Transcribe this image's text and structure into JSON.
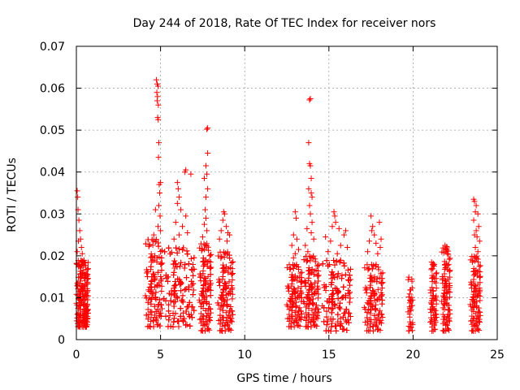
{
  "chart_data": {
    "type": "scatter",
    "title": "Day 244 of 2018, Rate Of TEC Index for receiver nors",
    "xlabel": "GPS time / hours",
    "ylabel": "ROTI / TECUs",
    "xlim": [
      0,
      25
    ],
    "ylim": [
      0,
      0.07
    ],
    "grid": true,
    "marker": "+",
    "marker_color": "#ff0000",
    "x_ticks": [
      0,
      5,
      10,
      15,
      20,
      25
    ],
    "x_tick_labels": [
      "0",
      "5",
      "10",
      "15",
      "20",
      "25"
    ],
    "y_ticks": [
      0,
      0.01,
      0.02,
      0.03,
      0.04,
      0.05,
      0.06,
      0.07
    ],
    "y_tick_labels": [
      "0",
      "0.01",
      "0.02",
      "0.03",
      "0.04",
      "0.05",
      "0.06",
      "0.07"
    ],
    "clusters": [
      {
        "x": [
          0.0,
          0.7
        ],
        "low": 0.003,
        "high": 0.019,
        "count": 260,
        "outliers": [
          [
            0.05,
            0.0355
          ],
          [
            0.08,
            0.034
          ],
          [
            0.1,
            0.031
          ],
          [
            0.15,
            0.0285
          ],
          [
            0.2,
            0.026
          ],
          [
            0.25,
            0.024
          ],
          [
            0.3,
            0.022
          ],
          [
            0.12,
            0.0235
          ],
          [
            0.35,
            0.0205
          ],
          [
            0.05,
            0.021
          ]
        ]
      },
      {
        "x": [
          4.1,
          5.1
        ],
        "low": 0.003,
        "high": 0.024,
        "count": 200,
        "outliers": [
          [
            4.75,
            0.062
          ],
          [
            4.8,
            0.061
          ],
          [
            4.85,
            0.0605
          ],
          [
            4.78,
            0.059
          ],
          [
            4.82,
            0.058
          ],
          [
            4.8,
            0.057
          ],
          [
            4.87,
            0.056
          ],
          [
            4.83,
            0.053
          ],
          [
            4.86,
            0.0525
          ],
          [
            4.9,
            0.047
          ],
          [
            4.88,
            0.0435
          ],
          [
            4.92,
            0.037
          ],
          [
            5.0,
            0.0375
          ],
          [
            4.95,
            0.035
          ],
          [
            4.9,
            0.032
          ],
          [
            4.7,
            0.031
          ],
          [
            4.97,
            0.0295
          ],
          [
            4.85,
            0.027
          ],
          [
            4.6,
            0.025
          ],
          [
            5.0,
            0.026
          ]
        ]
      },
      {
        "x": [
          5.2,
          7.0
        ],
        "low": 0.003,
        "high": 0.022,
        "count": 300,
        "outliers": [
          [
            6.5,
            0.0405
          ],
          [
            6.45,
            0.04
          ],
          [
            6.8,
            0.0395
          ],
          [
            6.0,
            0.0375
          ],
          [
            6.05,
            0.036
          ],
          [
            6.1,
            0.034
          ],
          [
            6.0,
            0.0325
          ],
          [
            6.2,
            0.031
          ],
          [
            6.5,
            0.0295
          ],
          [
            5.9,
            0.028
          ],
          [
            6.3,
            0.027
          ],
          [
            6.6,
            0.0255
          ],
          [
            6.1,
            0.025
          ],
          [
            5.8,
            0.024
          ]
        ]
      },
      {
        "x": [
          7.3,
          8.0
        ],
        "low": 0.002,
        "high": 0.023,
        "count": 170,
        "outliers": [
          [
            7.8,
            0.0505
          ],
          [
            7.75,
            0.0502
          ],
          [
            7.8,
            0.0445
          ],
          [
            7.7,
            0.0415
          ],
          [
            7.75,
            0.0395
          ],
          [
            7.6,
            0.0385
          ],
          [
            7.8,
            0.036
          ],
          [
            7.7,
            0.034
          ],
          [
            7.65,
            0.031
          ],
          [
            7.7,
            0.029
          ],
          [
            7.6,
            0.0275
          ],
          [
            7.75,
            0.026
          ],
          [
            7.5,
            0.0245
          ]
        ]
      },
      {
        "x": [
          8.4,
          9.3
        ],
        "low": 0.002,
        "high": 0.021,
        "count": 200,
        "outliers": [
          [
            8.75,
            0.0305
          ],
          [
            8.8,
            0.03
          ],
          [
            8.7,
            0.0285
          ],
          [
            8.9,
            0.027
          ],
          [
            8.6,
            0.026
          ],
          [
            9.0,
            0.0255
          ],
          [
            9.1,
            0.025
          ],
          [
            8.5,
            0.024
          ],
          [
            8.95,
            0.0235
          ]
        ]
      },
      {
        "x": [
          12.5,
          13.4
        ],
        "low": 0.003,
        "high": 0.018,
        "count": 140,
        "outliers": [
          [
            13.0,
            0.0305
          ],
          [
            13.05,
            0.029
          ],
          [
            12.9,
            0.025
          ],
          [
            13.1,
            0.024
          ],
          [
            12.8,
            0.0225
          ],
          [
            13.2,
            0.0215
          ],
          [
            13.0,
            0.0205
          ],
          [
            12.9,
            0.0195
          ]
        ]
      },
      {
        "x": [
          13.5,
          14.4
        ],
        "low": 0.003,
        "high": 0.02,
        "count": 180,
        "outliers": [
          [
            13.9,
            0.0575
          ],
          [
            13.85,
            0.0572
          ],
          [
            13.8,
            0.047
          ],
          [
            13.85,
            0.042
          ],
          [
            13.9,
            0.0415
          ],
          [
            13.95,
            0.0385
          ],
          [
            13.8,
            0.036
          ],
          [
            13.95,
            0.035
          ],
          [
            14.0,
            0.034
          ],
          [
            13.85,
            0.032
          ],
          [
            13.9,
            0.03
          ],
          [
            14.0,
            0.028
          ],
          [
            13.7,
            0.0265
          ],
          [
            13.95,
            0.0255
          ],
          [
            14.1,
            0.024
          ],
          [
            13.6,
            0.0225
          ],
          [
            13.75,
            0.021
          ]
        ]
      },
      {
        "x": [
          14.6,
          16.3
        ],
        "low": 0.002,
        "high": 0.019,
        "count": 300,
        "outliers": [
          [
            15.3,
            0.0305
          ],
          [
            15.35,
            0.0295
          ],
          [
            15.4,
            0.028
          ],
          [
            15.2,
            0.027
          ],
          [
            15.6,
            0.0265
          ],
          [
            16.0,
            0.026
          ],
          [
            15.9,
            0.025
          ],
          [
            14.8,
            0.0245
          ],
          [
            15.1,
            0.0235
          ],
          [
            15.7,
            0.0225
          ],
          [
            16.1,
            0.022
          ],
          [
            14.95,
            0.021
          ],
          [
            15.5,
            0.0205
          ]
        ]
      },
      {
        "x": [
          17.1,
          18.2
        ],
        "low": 0.002,
        "high": 0.018,
        "count": 170,
        "outliers": [
          [
            17.5,
            0.0295
          ],
          [
            18.0,
            0.028
          ],
          [
            17.6,
            0.027
          ],
          [
            17.55,
            0.026
          ],
          [
            17.7,
            0.025
          ],
          [
            18.1,
            0.024
          ],
          [
            17.4,
            0.0235
          ],
          [
            17.8,
            0.023
          ],
          [
            18.05,
            0.022
          ],
          [
            17.3,
            0.021
          ],
          [
            17.9,
            0.0205
          ]
        ]
      },
      {
        "x": [
          19.7,
          20.0
        ],
        "low": 0.002,
        "high": 0.015,
        "count": 35,
        "outliers": []
      },
      {
        "x": [
          21.0,
          21.4
        ],
        "low": 0.002,
        "high": 0.018,
        "count": 70,
        "outliers": [
          [
            21.1,
            0.0185
          ],
          [
            21.2,
            0.0182
          ]
        ]
      },
      {
        "x": [
          21.7,
          22.2
        ],
        "low": 0.002,
        "high": 0.022,
        "count": 100,
        "outliers": [
          [
            21.9,
            0.0225
          ],
          [
            22.0,
            0.0222
          ],
          [
            21.95,
            0.021
          ],
          [
            22.05,
            0.0205
          ]
        ]
      },
      {
        "x": [
          23.4,
          24.0
        ],
        "low": 0.002,
        "high": 0.02,
        "count": 110,
        "outliers": [
          [
            23.6,
            0.0335
          ],
          [
            23.65,
            0.033
          ],
          [
            23.75,
            0.032
          ],
          [
            23.7,
            0.0305
          ],
          [
            23.85,
            0.03
          ],
          [
            23.6,
            0.0285
          ],
          [
            23.9,
            0.027
          ],
          [
            23.75,
            0.026
          ],
          [
            23.65,
            0.025
          ],
          [
            23.8,
            0.0245
          ],
          [
            23.95,
            0.0235
          ],
          [
            23.7,
            0.022
          ],
          [
            23.85,
            0.021
          ]
        ]
      }
    ]
  }
}
